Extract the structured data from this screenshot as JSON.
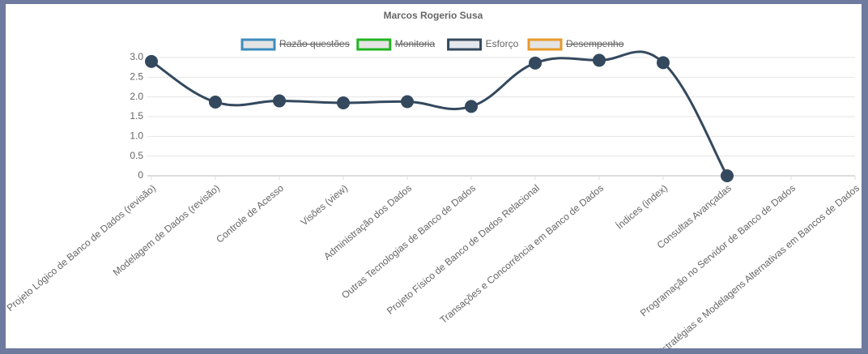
{
  "chart_data": {
    "type": "line",
    "title": "Marcos Rogerio Susa",
    "categories": [
      "Projeto Lógico de Banco de Dados (revisão)",
      "Modelagem de Dados (revisão)",
      "Controle de Acesso",
      "Visões (view)",
      "Administração dos Dados",
      "Outras Tecnologias de Banco de Dados",
      "Projeto Físico de Banco de Dados Relacional",
      "Transações e Concorrência em Banco de Dados",
      "Índices (index)",
      "Consultas Avançadas",
      "Programação no Servidor de Banco de Dados",
      "Estratégias e Modelagens Alternativas em Bancos de Dados"
    ],
    "series": [
      {
        "name": "Razão questões",
        "color": "#3c8dbc",
        "hidden": true,
        "values": [
          null,
          null,
          null,
          null,
          null,
          null,
          null,
          null,
          null,
          null,
          null,
          null
        ]
      },
      {
        "name": "Monitoria",
        "color": "#22b522",
        "hidden": true,
        "values": [
          null,
          null,
          null,
          null,
          null,
          null,
          null,
          null,
          null,
          null,
          null,
          null
        ]
      },
      {
        "name": "Esforço",
        "color": "#34495e",
        "hidden": false,
        "values": [
          2.9,
          1.87,
          1.9,
          1.85,
          1.88,
          1.76,
          2.86,
          2.93,
          2.87,
          0,
          null,
          null
        ]
      },
      {
        "name": "Desempenho",
        "color": "#e69a2c",
        "hidden": true,
        "values": [
          null,
          null,
          null,
          null,
          null,
          null,
          null,
          null,
          null,
          null,
          null,
          null
        ]
      }
    ],
    "ylim": [
      0,
      3
    ],
    "yticks": [
      0,
      0.5,
      {
        "value": 1,
        "label": "1.0"
      },
      1.5,
      {
        "value": 2,
        "label": "2.0"
      },
      2.5,
      {
        "value": 3,
        "label": "3.0"
      }
    ],
    "grid": true,
    "legend": "top"
  }
}
